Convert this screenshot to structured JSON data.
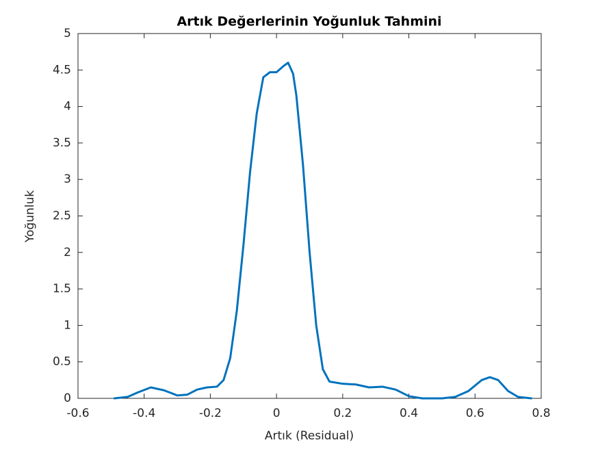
{
  "chart_data": {
    "type": "line",
    "title": "Artık Değerlerinin Yoğunluk Tahmini",
    "xlabel": "Artık (Residual)",
    "ylabel": "Yoğunluk",
    "x": [
      -0.49,
      -0.45,
      -0.42,
      -0.38,
      -0.34,
      -0.3,
      -0.27,
      -0.24,
      -0.21,
      -0.18,
      -0.16,
      -0.14,
      -0.12,
      -0.1,
      -0.08,
      -0.06,
      -0.04,
      -0.02,
      0,
      0.02,
      0.035,
      0.05,
      0.06,
      0.08,
      0.1,
      0.12,
      0.14,
      0.16,
      0.2,
      0.24,
      0.28,
      0.32,
      0.36,
      0.4,
      0.44,
      0.5,
      0.54,
      0.58,
      0.62,
      0.645,
      0.67,
      0.7,
      0.73,
      0.77
    ],
    "series": [
      {
        "name": "Yoğunluk",
        "color": "#0072bd",
        "values": [
          0,
          0.02,
          0.08,
          0.15,
          0.11,
          0.04,
          0.05,
          0.12,
          0.15,
          0.16,
          0.25,
          0.55,
          1.2,
          2.1,
          3.1,
          3.9,
          4.4,
          4.47,
          4.47,
          4.55,
          4.6,
          4.45,
          4.15,
          3.2,
          2.0,
          1.0,
          0.4,
          0.23,
          0.2,
          0.19,
          0.15,
          0.16,
          0.12,
          0.03,
          0,
          0,
          0.02,
          0.1,
          0.25,
          0.29,
          0.25,
          0.1,
          0.02,
          0
        ]
      }
    ],
    "xlim": [
      -0.6,
      0.8
    ],
    "xticks": [
      -0.6,
      -0.4,
      -0.2,
      0,
      0.2,
      0.4,
      0.6,
      0.8
    ],
    "ylim": [
      0,
      5
    ],
    "yticks": [
      0,
      0.5,
      1,
      1.5,
      2,
      2.5,
      3,
      3.5,
      4,
      4.5,
      5
    ],
    "grid": false
  }
}
